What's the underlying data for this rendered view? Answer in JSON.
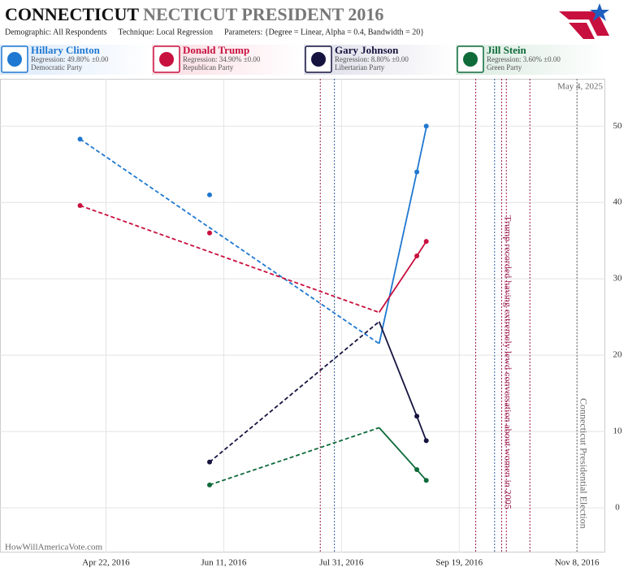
{
  "chart_data": {
    "type": "line",
    "title": {
      "state": "CONNECTICUT",
      "rest": "NECTICUT PRESIDENT 2016"
    },
    "subtitle": [
      "Demographic: All Respondents",
      "Technique: Local Regression",
      "Parameters: {Degree = Linear, Alpha = 0.4, Bandwidth = 20}"
    ],
    "date_stamp": "May 4, 2025",
    "source": "HowWillAmericaVote.com",
    "xlim": [
      "2016-03-08",
      "2016-11-20"
    ],
    "ylim": [
      -5.85,
      56.2
    ],
    "xticks": [
      {
        "value": "2016-04-22",
        "label": "Apr 22, 2016"
      },
      {
        "value": "2016-06-11",
        "label": "Jun 11, 2016"
      },
      {
        "value": "2016-07-31",
        "label": "Jul 31, 2016"
      },
      {
        "value": "2016-09-19",
        "label": "Sep 19, 2016"
      },
      {
        "value": "2016-11-08",
        "label": "Nov 8, 2016"
      }
    ],
    "yticks": [
      0,
      10,
      20,
      30,
      40,
      50
    ],
    "grid": true,
    "series": [
      {
        "name": "Hillary Clinton",
        "color": "#1f78d1",
        "regression": "Regression: 49.80% ±0.00",
        "party": "Democratic Party",
        "x": [
          "2016-04-11",
          "2016-06-05",
          "2016-09-01",
          "2016-09-05"
        ],
        "values": [
          48.3,
          41,
          44,
          50
        ],
        "projection": {
          "x": [
            "2016-04-11",
            "2016-08-16"
          ],
          "values": [
            48.3,
            21.5
          ]
        },
        "regression_line": {
          "x": [
            "2016-08-16",
            "2016-09-01",
            "2016-09-05"
          ],
          "values": [
            21.5,
            44,
            49.8
          ]
        }
      },
      {
        "name": "Donald Trump",
        "color": "#c8103e",
        "regression": "Regression: 34.90% ±0.00",
        "party": "Republican Party",
        "x": [
          "2016-04-11",
          "2016-06-05",
          "2016-09-01",
          "2016-09-05"
        ],
        "values": [
          39.6,
          36,
          33,
          34.9
        ],
        "projection": {
          "x": [
            "2016-04-11",
            "2016-08-16"
          ],
          "values": [
            39.6,
            25.6
          ]
        },
        "regression_line": {
          "x": [
            "2016-08-16",
            "2016-09-01",
            "2016-09-05"
          ],
          "values": [
            25.6,
            33,
            34.9
          ]
        }
      },
      {
        "name": "Gary Johnson",
        "color": "#16143f",
        "regression": "Regression: 8.80% ±0.00",
        "party": "Libertarian Party",
        "x": [
          "2016-06-05",
          "2016-09-01",
          "2016-09-05"
        ],
        "values": [
          6,
          12,
          8.8
        ],
        "projection": {
          "x": [
            "2016-06-05",
            "2016-08-16"
          ],
          "values": [
            6,
            24.4
          ]
        },
        "regression_line": {
          "x": [
            "2016-08-16",
            "2016-09-01",
            "2016-09-05"
          ],
          "values": [
            24.4,
            12,
            8.8
          ]
        }
      },
      {
        "name": "Jill Stein",
        "color": "#0f6b3a",
        "regression": "Regression: 3.60% ±0.00",
        "party": "Green Party",
        "x": [
          "2016-06-05",
          "2016-09-01",
          "2016-09-05"
        ],
        "values": [
          3,
          5,
          3.6
        ],
        "projection": {
          "x": [
            "2016-06-05",
            "2016-08-16"
          ],
          "values": [
            3,
            10.5
          ]
        },
        "regression_line": {
          "x": [
            "2016-08-16",
            "2016-09-01",
            "2016-09-05"
          ],
          "values": [
            10.5,
            5,
            3.6
          ]
        }
      }
    ],
    "events": [
      {
        "x": "2016-07-22",
        "color": "#9b1b4b"
      },
      {
        "x": "2016-07-28",
        "color": "#3060a0"
      },
      {
        "x": "2016-09-26",
        "color": "#9b1b4b"
      },
      {
        "x": "2016-10-04",
        "color": "#3060a0"
      },
      {
        "x": "2016-10-07",
        "color": "#9b1b4b"
      },
      {
        "x": "2016-10-09",
        "color": "#9b1b4b"
      },
      {
        "x": "2016-10-19",
        "color": "#9b1b4b"
      },
      {
        "x": "2016-11-08",
        "color": "#666666"
      }
    ],
    "annotations": [
      {
        "text": "Trump recorded having extremely lewd conversation about women in 2005",
        "x": "2016-10-07",
        "color": "#9b1b4b"
      },
      {
        "text": "Connecticut Presidential Election",
        "x": "2016-11-08",
        "color": "#666666"
      }
    ]
  }
}
